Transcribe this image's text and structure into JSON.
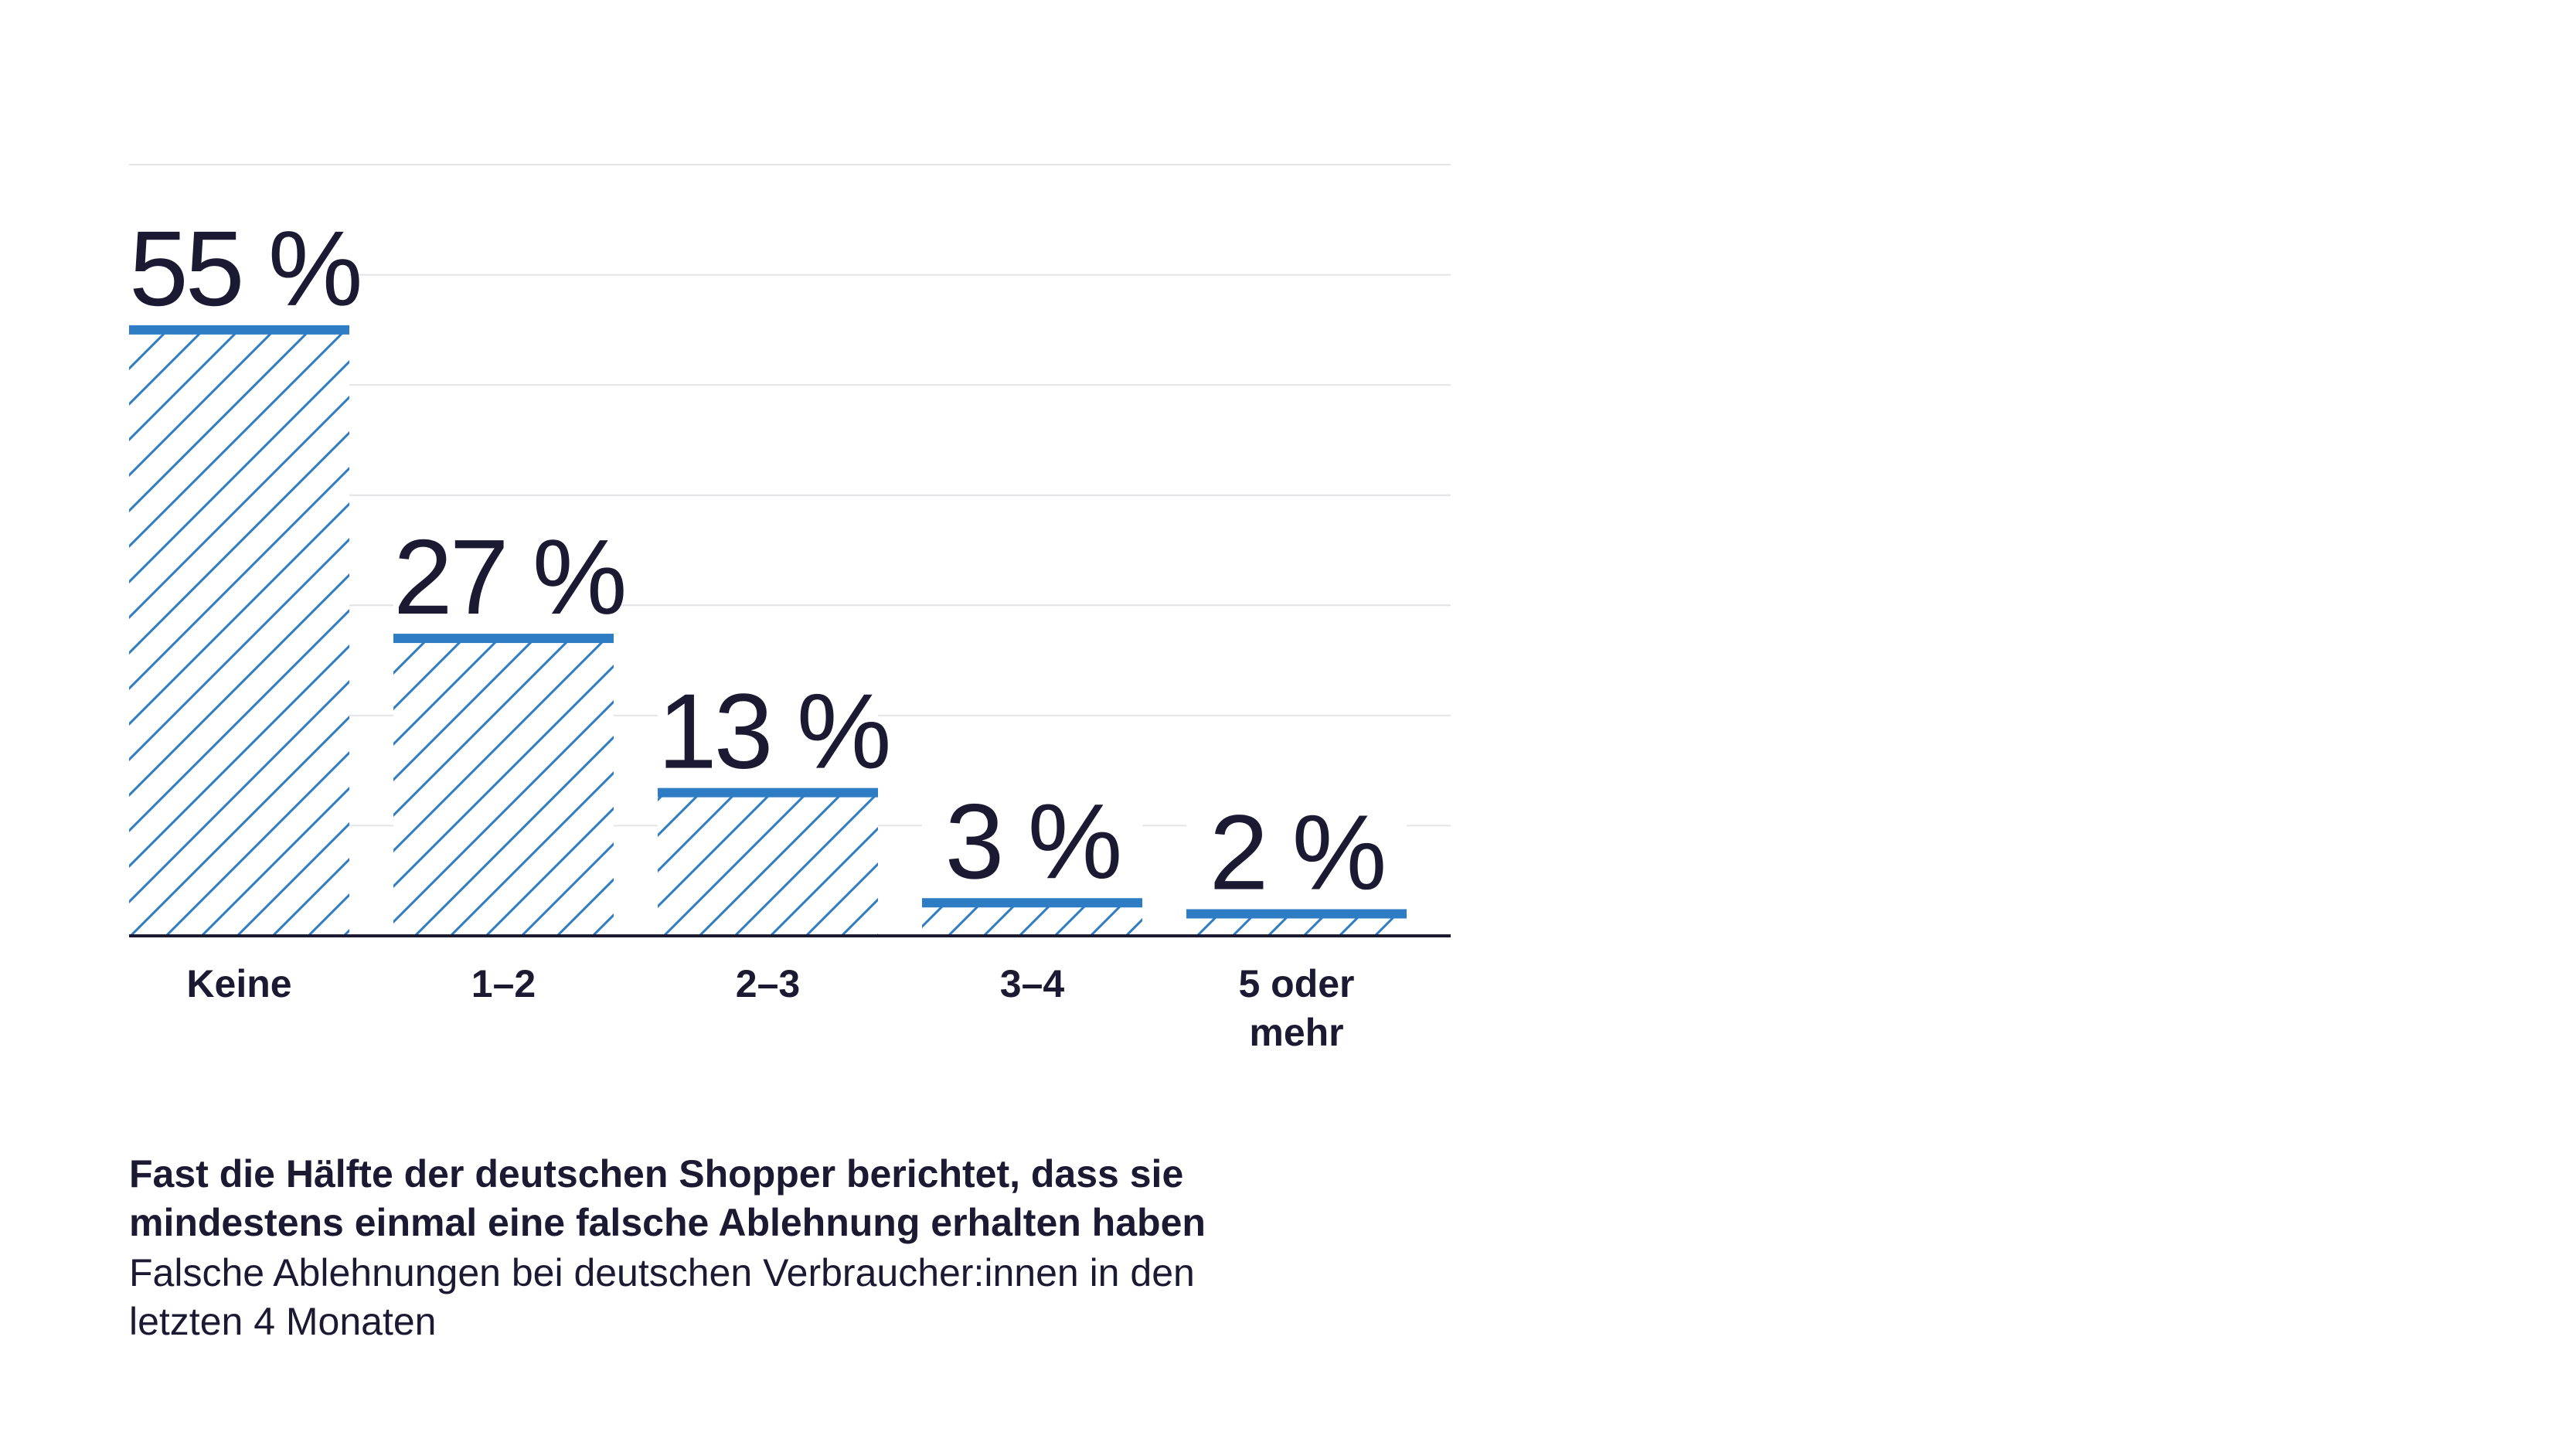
{
  "chart_data": {
    "type": "bar",
    "categories": [
      "Keine",
      "1–2",
      "2–3",
      "3–4",
      "5 oder mehr"
    ],
    "category_lines": [
      [
        "Keine"
      ],
      [
        "1–2"
      ],
      [
        "2–3"
      ],
      [
        "3–4"
      ],
      [
        "5 oder",
        "mehr"
      ]
    ],
    "values": [
      55,
      27,
      13,
      3,
      2
    ],
    "value_labels": [
      "55 %",
      "27 %",
      "13 %",
      "3 %",
      "2 %"
    ],
    "ylim": [
      0,
      70
    ],
    "grid": true,
    "colors": {
      "bar_top": "#2e7cc4",
      "hatch": "#2e7cc4",
      "text": "#1c1a33",
      "grid": "#e4e4e8",
      "axis": "#1c1a33"
    }
  },
  "caption": {
    "title_line1": "Fast die Hälfte der deutschen Shopper berichtet, dass sie",
    "title_line2": "mindestens einmal eine falsche Ablehnung erhalten haben",
    "subtitle_line1": "Falsche Ablehnungen bei deutschen Verbraucher:innen in den",
    "subtitle_line2": "letzten 4 Monaten"
  }
}
